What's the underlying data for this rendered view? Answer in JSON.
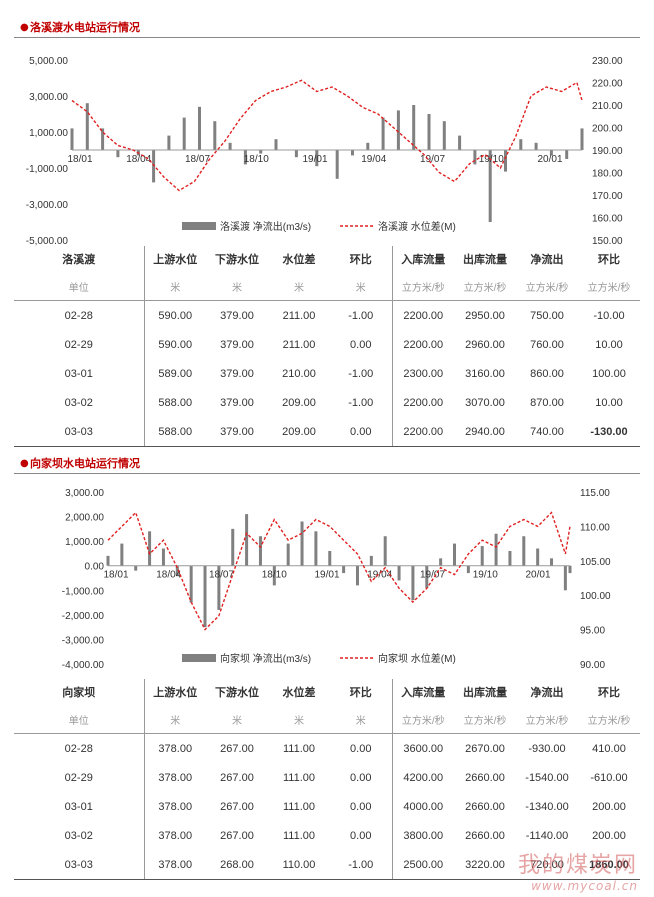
{
  "stations": [
    {
      "section_title": "洛溪渡水电站运行情况",
      "chart_data": {
        "type": "area",
        "left_axis": {
          "ticks": [
            "5,000.00",
            "3,000.00",
            "1,000.00",
            "-1,000.00",
            "-3,000.00",
            "-5,000.00"
          ],
          "min": -5000,
          "max": 5000
        },
        "right_axis": {
          "ticks": [
            "230.00",
            "220.00",
            "210.00",
            "200.00",
            "190.00",
            "180.00",
            "170.00",
            "160.00",
            "150.00"
          ],
          "min": 150,
          "max": 230
        },
        "x_ticks": [
          "18/01",
          "18/04",
          "18/07",
          "18/10",
          "19/01",
          "19/04",
          "19/07",
          "19/10",
          "20/01"
        ],
        "series": [
          {
            "name": "洛溪渡 净流出(m3/s)",
            "color": "#808080",
            "axis": "left",
            "kind": "bar",
            "points": [
              [
                0,
                1200
              ],
              [
                3,
                2600
              ],
              [
                6,
                1200
              ],
              [
                9,
                -400
              ],
              [
                13,
                -300
              ],
              [
                16,
                -1800
              ],
              [
                19,
                800
              ],
              [
                22,
                1800
              ],
              [
                25,
                2400
              ],
              [
                28,
                1600
              ],
              [
                31,
                400
              ],
              [
                34,
                -800
              ],
              [
                37,
                -200
              ],
              [
                40,
                600
              ],
              [
                44,
                -400
              ],
              [
                48,
                -900
              ],
              [
                52,
                -1600
              ],
              [
                55,
                -300
              ],
              [
                58,
                400
              ],
              [
                61,
                1800
              ],
              [
                64,
                2200
              ],
              [
                67,
                2500
              ],
              [
                70,
                2000
              ],
              [
                73,
                1600
              ],
              [
                76,
                800
              ],
              [
                79,
                -800
              ],
              [
                82,
                -4000
              ],
              [
                85,
                -1200
              ],
              [
                88,
                600
              ],
              [
                91,
                400
              ],
              [
                94,
                -300
              ],
              [
                97,
                -500
              ],
              [
                100,
                1200
              ]
            ]
          },
          {
            "name": "洛溪渡 水位差(M)",
            "color": "#e02020",
            "axis": "right",
            "kind": "line",
            "points": [
              [
                0,
                212
              ],
              [
                3,
                207
              ],
              [
                6,
                198
              ],
              [
                9,
                192
              ],
              [
                12,
                190
              ],
              [
                15,
                186
              ],
              [
                18,
                178
              ],
              [
                21,
                172
              ],
              [
                24,
                176
              ],
              [
                27,
                186
              ],
              [
                30,
                194
              ],
              [
                33,
                204
              ],
              [
                36,
                212
              ],
              [
                39,
                216
              ],
              [
                42,
                218
              ],
              [
                45,
                221
              ],
              [
                48,
                216
              ],
              [
                51,
                218
              ],
              [
                54,
                214
              ],
              [
                57,
                209
              ],
              [
                60,
                206
              ],
              [
                63,
                200
              ],
              [
                66,
                194
              ],
              [
                69,
                188
              ],
              [
                72,
                180
              ],
              [
                75,
                176
              ],
              [
                78,
                184
              ],
              [
                81,
                188
              ],
              [
                84,
                182
              ],
              [
                87,
                196
              ],
              [
                90,
                214
              ],
              [
                93,
                218
              ],
              [
                96,
                216
              ],
              [
                99,
                220
              ],
              [
                100,
                212
              ]
            ]
          }
        ]
      },
      "table": {
        "station_label": "洛溪渡",
        "unit_label": "单位",
        "headers": [
          "上游水位",
          "下游水位",
          "水位差",
          "环比",
          "入库流量",
          "出库流量",
          "净流出",
          "环比"
        ],
        "units": [
          "米",
          "米",
          "米",
          "米",
          "立方米/秒",
          "立方米/秒",
          "立方米/秒",
          "立方米/秒"
        ],
        "rows": [
          {
            "date": "02-28",
            "up": "590.00",
            "down": "379.00",
            "diff": "211.00",
            "mom1": "-1.00",
            "inflow": "2200.00",
            "outflow": "2950.00",
            "net": "750.00",
            "mom2": "-10.00"
          },
          {
            "date": "02-29",
            "up": "590.00",
            "down": "379.00",
            "diff": "211.00",
            "mom1": "0.00",
            "inflow": "2200.00",
            "outflow": "2960.00",
            "net": "760.00",
            "mom2": "10.00"
          },
          {
            "date": "03-01",
            "up": "589.00",
            "down": "379.00",
            "diff": "210.00",
            "mom1": "-1.00",
            "inflow": "2300.00",
            "outflow": "3160.00",
            "net": "860.00",
            "mom2": "100.00"
          },
          {
            "date": "03-02",
            "up": "588.00",
            "down": "379.00",
            "diff": "209.00",
            "mom1": "-1.00",
            "inflow": "2200.00",
            "outflow": "3070.00",
            "net": "870.00",
            "mom2": "10.00"
          },
          {
            "date": "03-03",
            "up": "588.00",
            "down": "379.00",
            "diff": "209.00",
            "mom1": "0.00",
            "inflow": "2200.00",
            "outflow": "2940.00",
            "net": "740.00",
            "mom2": "-130.00"
          }
        ]
      }
    },
    {
      "section_title": "向家坝水电站运行情况",
      "chart_data": {
        "type": "area",
        "left_axis": {
          "ticks": [
            "3,000.00",
            "2,000.00",
            "1,000.00",
            "0.00",
            "-1,000.00",
            "-2,000.00",
            "-3,000.00",
            "-4,000.00"
          ],
          "min": -4000,
          "max": 3000
        },
        "right_axis": {
          "ticks": [
            "115.00",
            "110.00",
            "105.00",
            "100.00",
            "95.00",
            "90.00"
          ],
          "min": 90,
          "max": 115
        },
        "x_ticks": [
          "18/01",
          "18/04",
          "18/07",
          "18/10",
          "19/01",
          "19/04",
          "19/07",
          "19/10",
          "20/01"
        ],
        "series": [
          {
            "name": "向家坝 净流出(m3/s)",
            "color": "#808080",
            "axis": "left",
            "kind": "bar",
            "points": [
              [
                0,
                400
              ],
              [
                3,
                900
              ],
              [
                6,
                -200
              ],
              [
                9,
                1400
              ],
              [
                12,
                700
              ],
              [
                15,
                -400
              ],
              [
                18,
                -1500
              ],
              [
                21,
                -2500
              ],
              [
                24,
                -1800
              ],
              [
                27,
                1500
              ],
              [
                30,
                2100
              ],
              [
                33,
                1200
              ],
              [
                36,
                -800
              ],
              [
                39,
                900
              ],
              [
                42,
                1800
              ],
              [
                45,
                1400
              ],
              [
                48,
                600
              ],
              [
                51,
                -300
              ],
              [
                54,
                -800
              ],
              [
                57,
                400
              ],
              [
                60,
                1200
              ],
              [
                63,
                -600
              ],
              [
                66,
                -1400
              ],
              [
                69,
                -900
              ],
              [
                72,
                300
              ],
              [
                75,
                900
              ],
              [
                78,
                -300
              ],
              [
                81,
                800
              ],
              [
                84,
                1300
              ],
              [
                87,
                600
              ],
              [
                90,
                1200
              ],
              [
                93,
                700
              ],
              [
                96,
                300
              ],
              [
                99,
                -1000
              ],
              [
                100,
                -300
              ]
            ]
          },
          {
            "name": "向家坝 水位差(M)",
            "color": "#e02020",
            "axis": "right",
            "kind": "line",
            "points": [
              [
                0,
                108
              ],
              [
                3,
                110
              ],
              [
                6,
                112
              ],
              [
                9,
                106
              ],
              [
                12,
                108
              ],
              [
                15,
                104
              ],
              [
                18,
                99
              ],
              [
                21,
                95
              ],
              [
                24,
                97
              ],
              [
                27,
                103
              ],
              [
                30,
                109
              ],
              [
                33,
                107
              ],
              [
                36,
                111
              ],
              [
                39,
                108
              ],
              [
                42,
                109
              ],
              [
                45,
                111
              ],
              [
                48,
                110
              ],
              [
                51,
                108
              ],
              [
                54,
                106
              ],
              [
                57,
                102
              ],
              [
                60,
                104
              ],
              [
                63,
                101
              ],
              [
                66,
                99
              ],
              [
                69,
                101
              ],
              [
                72,
                104
              ],
              [
                75,
                103
              ],
              [
                78,
                106
              ],
              [
                81,
                108
              ],
              [
                84,
                107
              ],
              [
                87,
                110
              ],
              [
                90,
                111
              ],
              [
                93,
                110
              ],
              [
                96,
                112
              ],
              [
                99,
                106
              ],
              [
                100,
                110
              ]
            ]
          }
        ]
      },
      "table": {
        "station_label": "向家坝",
        "unit_label": "单位",
        "headers": [
          "上游水位",
          "下游水位",
          "水位差",
          "环比",
          "入库流量",
          "出库流量",
          "净流出",
          "环比"
        ],
        "units": [
          "米",
          "米",
          "米",
          "米",
          "立方米/秒",
          "立方米/秒",
          "立方米/秒",
          "立方米/秒"
        ],
        "rows": [
          {
            "date": "02-28",
            "up": "378.00",
            "down": "267.00",
            "diff": "111.00",
            "mom1": "0.00",
            "inflow": "3600.00",
            "outflow": "2670.00",
            "net": "-930.00",
            "mom2": "410.00"
          },
          {
            "date": "02-29",
            "up": "378.00",
            "down": "267.00",
            "diff": "111.00",
            "mom1": "0.00",
            "inflow": "4200.00",
            "outflow": "2660.00",
            "net": "-1540.00",
            "mom2": "-610.00"
          },
          {
            "date": "03-01",
            "up": "378.00",
            "down": "267.00",
            "diff": "111.00",
            "mom1": "0.00",
            "inflow": "4000.00",
            "outflow": "2660.00",
            "net": "-1340.00",
            "mom2": "200.00"
          },
          {
            "date": "03-02",
            "up": "378.00",
            "down": "267.00",
            "diff": "111.00",
            "mom1": "0.00",
            "inflow": "3800.00",
            "outflow": "2660.00",
            "net": "-1140.00",
            "mom2": "200.00"
          },
          {
            "date": "03-03",
            "up": "378.00",
            "down": "268.00",
            "diff": "110.00",
            "mom1": "-1.00",
            "inflow": "2500.00",
            "outflow": "3220.00",
            "net": "720.00",
            "mom2": "1860.00"
          }
        ]
      }
    }
  ],
  "watermark": {
    "cn": "我的煤炭网",
    "en": "www.mycoal.cn"
  }
}
